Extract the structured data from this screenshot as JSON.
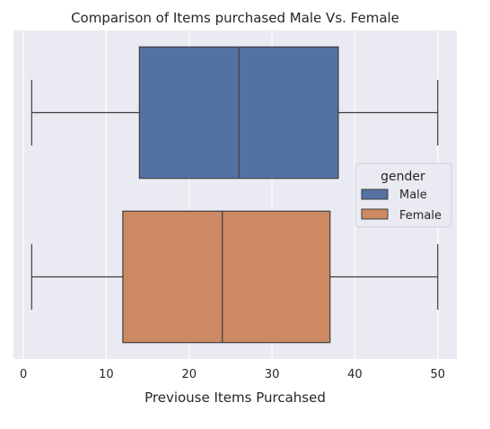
{
  "chart_data": {
    "type": "box",
    "title": "Comparison of Items purchased Male Vs. Female",
    "xlabel": "Previouse Items Purcahsed",
    "ylabel": "",
    "xlim": [
      -1.2,
      52.3
    ],
    "xticks": [
      0,
      10,
      20,
      30,
      40,
      50
    ],
    "grid": true,
    "orientation": "horizontal",
    "legend": {
      "title": "gender",
      "position": "center-right"
    },
    "series": [
      {
        "name": "Male",
        "color": "#5471a4",
        "min": 1,
        "q1": 14,
        "median": 26,
        "q3": 38,
        "max": 50
      },
      {
        "name": "Female",
        "color": "#cc8963",
        "min": 1,
        "q1": 12,
        "median": 24,
        "q3": 37,
        "max": 50
      }
    ]
  }
}
